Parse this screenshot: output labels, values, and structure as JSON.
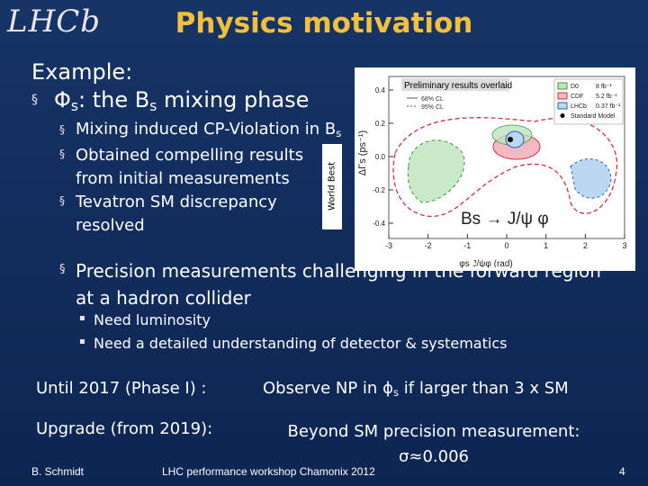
{
  "logo": "LHCb",
  "title": "Physics motivation",
  "example": "Example:",
  "topic": [
    "Φ",
    "s",
    ": the B",
    "s",
    " mixing phase"
  ],
  "sub_bullets": [
    [
      "Mixing induced CP-Violation in B",
      "s"
    ],
    [
      "Obtained compelling results from initial measurements"
    ],
    [
      "Tevatron SM discrepancy resolved"
    ]
  ],
  "side_label": "World Best",
  "figure": {
    "banner": "Preliminary results overlaid",
    "cl": [
      "68% CL",
      "95% CL"
    ],
    "legend": [
      "D0",
      "CDF",
      "LHCb",
      "Standard Model"
    ],
    "lumi": [
      "8 fb⁻¹",
      "5.2 fb⁻¹",
      "0.37 fb⁻¹"
    ],
    "ylabel": "ΔΓs (ps⁻¹)",
    "yticks": [
      "0.4",
      "0.2",
      "0.0",
      "-0.2",
      "-0.4"
    ],
    "xticks": [
      "-3",
      "-2",
      "-1",
      "0",
      "1",
      "2",
      "3"
    ],
    "xlabel": "φs J/ψφ (rad)",
    "channel": "Bs → J/ψ φ"
  },
  "main_bullet": "Precision measurements challenging in the forward region at a hadron collider",
  "small_bullets": [
    "Need luminosity",
    "Need a detailed understanding of detector & systematics"
  ],
  "goals": [
    {
      "when": "Until 2017 (Phase I) :",
      "what": [
        "Observe NP in ϕ",
        "s",
        " if larger than 3 x SM"
      ]
    },
    {
      "when": "Upgrade (from 2019):",
      "what": [
        "Beyond SM precision measurement: σ≈0.006"
      ]
    }
  ],
  "footer": {
    "author": "B. Schmidt",
    "event": "LHC performance workshop Chamonix 2012",
    "page": "4"
  }
}
